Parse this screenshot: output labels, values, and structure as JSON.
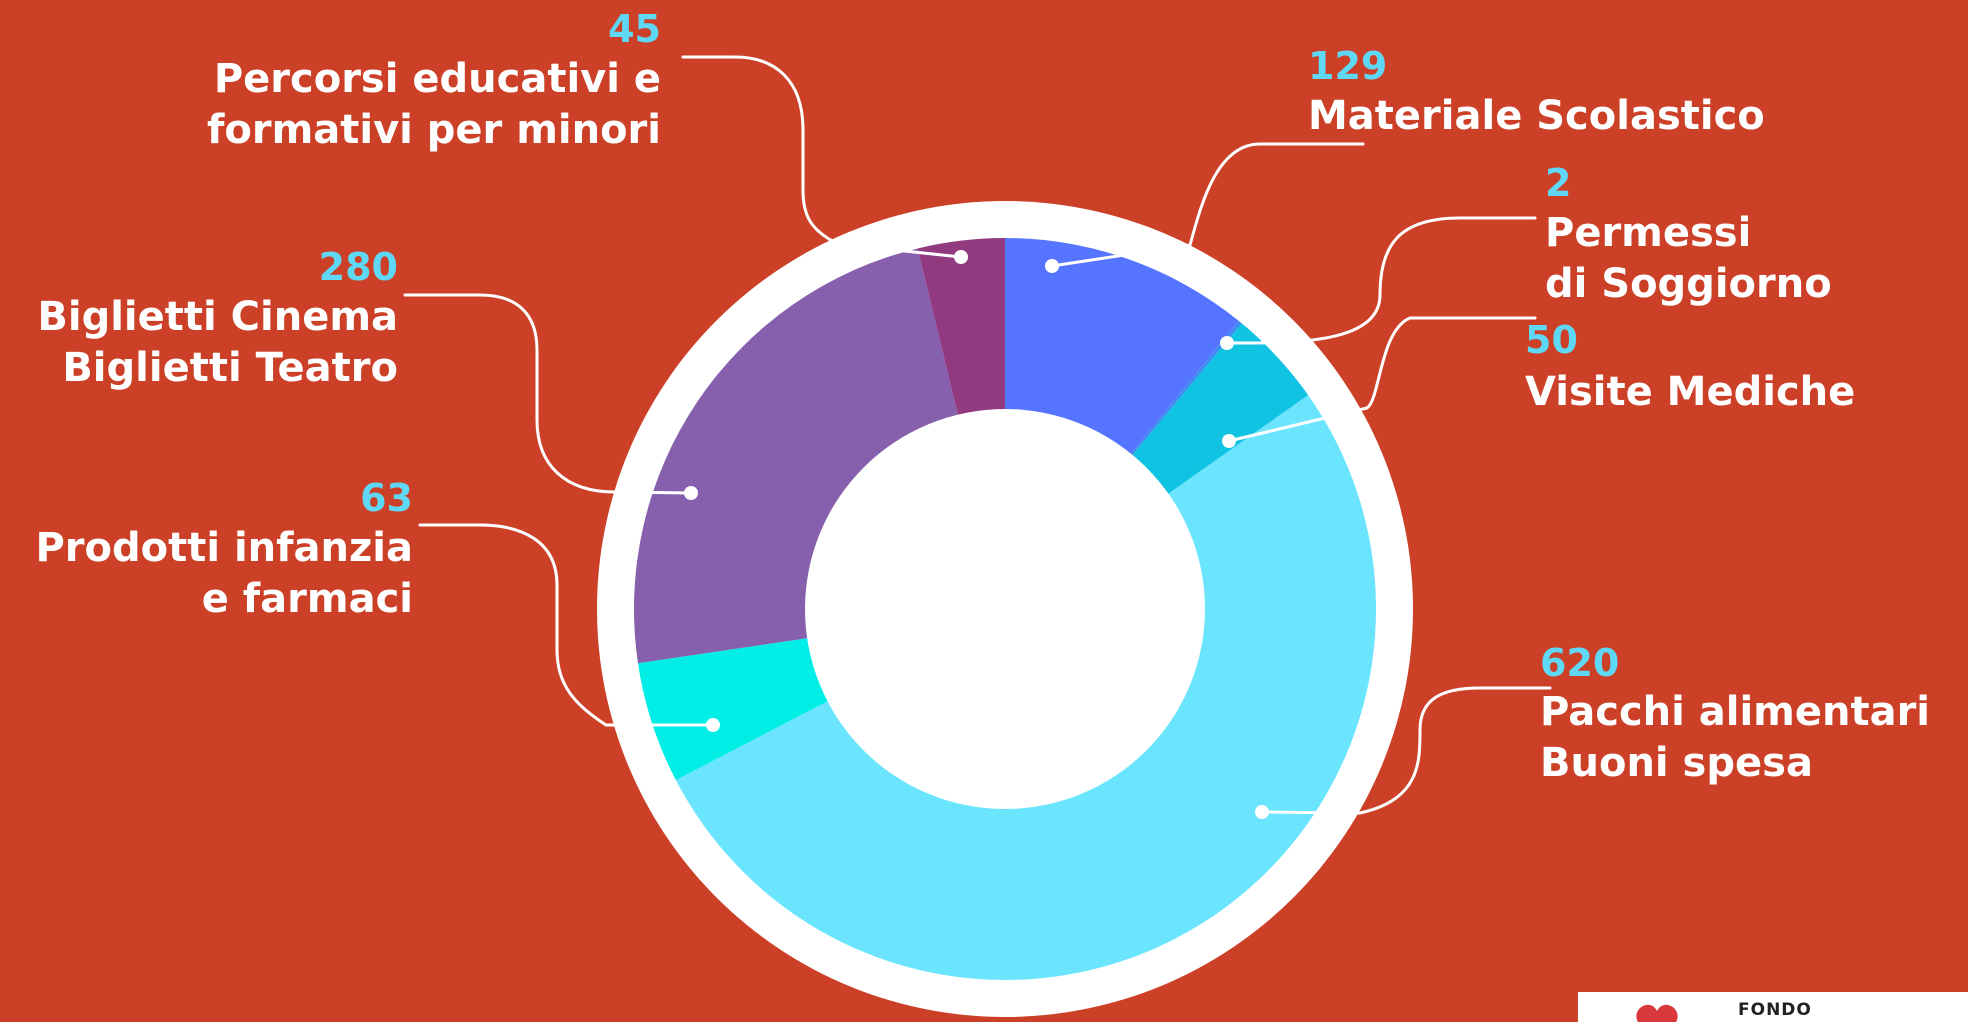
{
  "chart_data": {
    "type": "pie",
    "hole": "donut",
    "slices": [
      {
        "label": "Materiale Scolastico",
        "value": 129,
        "color": "#5574ff"
      },
      {
        "label": "Permessi di Soggiorno",
        "value": 2,
        "color": "#3f8cf0"
      },
      {
        "label": "Visite Mediche",
        "value": 50,
        "color": "#10c3e3"
      },
      {
        "label": "Pacchi alimentari Buoni spesa",
        "value": 620,
        "color": "#6be5fe"
      },
      {
        "label": "Prodotti infanzia e farmaci",
        "value": 63,
        "color": "#00eee6"
      },
      {
        "label": "Biglietti Cinema Biglietti Teatro",
        "value": 280,
        "color": "#8760ad"
      },
      {
        "label": "Percorsi educativi e formativi per minori",
        "value": 45,
        "color": "#923a80"
      }
    ]
  },
  "labels": [
    {
      "value": "129",
      "lines": [
        "Materiale Scolastico"
      ]
    },
    {
      "value": "2",
      "lines": [
        "Permessi",
        "di Soggiorno"
      ]
    },
    {
      "value": "50",
      "lines": [
        "Visite Mediche"
      ]
    },
    {
      "value": "620",
      "lines": [
        "Pacchi alimentari",
        "Buoni spesa"
      ]
    },
    {
      "value": "63",
      "lines": [
        "Prodotti infanzia",
        "e farmaci"
      ]
    },
    {
      "value": "280",
      "lines": [
        "Biglietti Cinema",
        "Biglietti Teatro"
      ]
    },
    {
      "value": "45",
      "lines": [
        "Percorsi educativi e",
        "formativi per minori"
      ]
    }
  ],
  "colors": {
    "background": "#cc4028",
    "value_text": "#5fd8f5",
    "label_text": "#ffffff",
    "ring": "#ffffff"
  },
  "logo": {
    "text": "FONDO"
  }
}
